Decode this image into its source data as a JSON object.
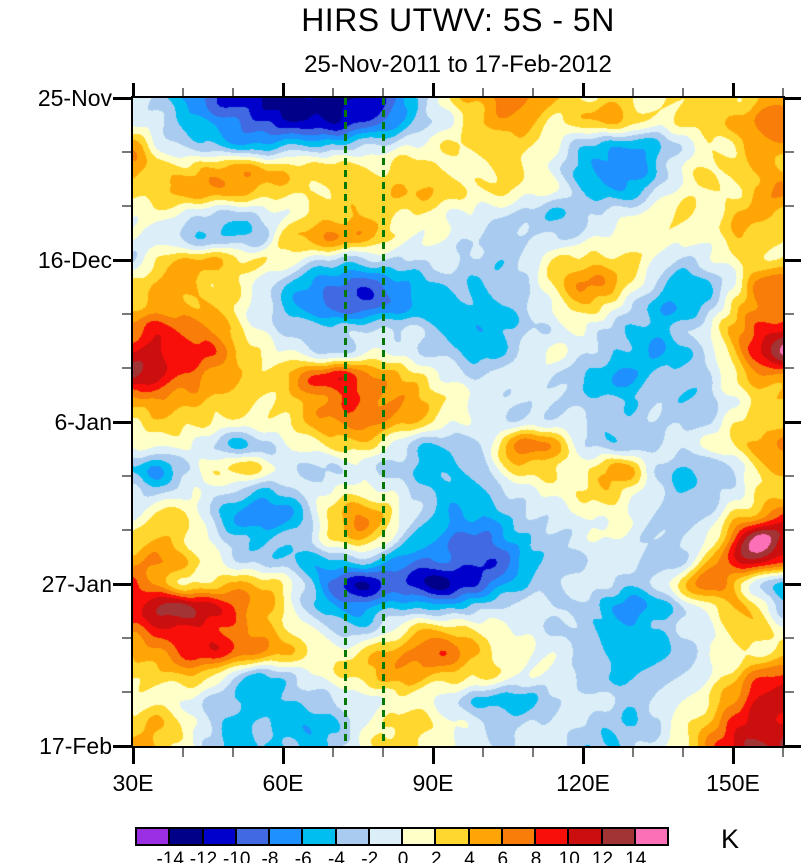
{
  "title": "HIRS UTWV: 5S - 5N",
  "subtitle": "25-Nov-2011 to 17-Feb-2012",
  "x_axis": {
    "major_ticks": [
      {
        "lon": 30,
        "label": "30E"
      },
      {
        "lon": 60,
        "label": "60E"
      },
      {
        "lon": 90,
        "label": "90E"
      },
      {
        "lon": 120,
        "label": "120E"
      },
      {
        "lon": 150,
        "label": "150E"
      }
    ],
    "minor_tick_lons": [
      40,
      50,
      70,
      80,
      100,
      110,
      130,
      140,
      160
    ],
    "range_deg_east": [
      30,
      160
    ]
  },
  "y_axis": {
    "major_ticks": [
      {
        "day": 0,
        "label": "25-Nov"
      },
      {
        "day": 21,
        "label": "16-Dec"
      },
      {
        "day": 42,
        "label": "6-Jan"
      },
      {
        "day": 63,
        "label": "27-Jan"
      },
      {
        "day": 84,
        "label": "17-Feb"
      }
    ],
    "minor_tick_days": [
      7,
      14,
      28,
      35,
      49,
      56,
      70,
      77
    ],
    "range_days": [
      0,
      84
    ]
  },
  "colorbar": {
    "unit_label": "K",
    "tick_labels": [
      "-14",
      "-12",
      "-10",
      "-8",
      "-6",
      "-4",
      "-2",
      "0",
      "2",
      "4",
      "6",
      "8",
      "10",
      "12",
      "14"
    ],
    "colors": [
      "#9B2FE3",
      "#000089",
      "#0000CD",
      "#4169E1",
      "#1E90FF",
      "#00BFF0",
      "#A9CBEF",
      "#DCEFF8",
      "#FFFFC8",
      "#FFD72E",
      "#FFA606",
      "#F87D09",
      "#F90F09",
      "#CB0E0E",
      "#A23436",
      "#FC70B8"
    ]
  },
  "reference_lines": {
    "color": "#067806",
    "longitudes_deg_east": [
      72.5,
      80
    ]
  },
  "chart_data": {
    "type": "heatmap",
    "title": "HIRS UTWV: 5S - 5N",
    "subtitle": "25-Nov-2011 to 17-Feb-2012",
    "units": "K",
    "x_deg_east": [
      30,
      35,
      40,
      45,
      50,
      55,
      60,
      65,
      70,
      75,
      80,
      85,
      90,
      95,
      100,
      105,
      110,
      115,
      120,
      125,
      130,
      135,
      140,
      145,
      150,
      155,
      160
    ],
    "time_days_since_start": [
      0,
      3,
      6,
      9,
      12,
      15,
      18,
      21,
      24,
      27,
      30,
      33,
      36,
      39,
      42,
      45,
      48,
      51,
      54,
      57,
      60,
      63,
      66,
      69,
      72,
      75,
      78,
      81,
      84
    ],
    "y_date_ticks": [
      "25-Nov",
      "16-Dec",
      "6-Jan",
      "27-Jan",
      "17-Feb"
    ],
    "x_tick_labels": [
      "30E",
      "60E",
      "90E",
      "120E",
      "150E"
    ],
    "contour_levels_K": [
      -14,
      -12,
      -10,
      -8,
      -6,
      -4,
      -2,
      0,
      2,
      4,
      6,
      8,
      10,
      12,
      14
    ],
    "level_colors": [
      "#9B2FE3",
      "#000089",
      "#0000CD",
      "#4169E1",
      "#1E90FF",
      "#00BFF0",
      "#A9CBEF",
      "#DCEFF8",
      "#FFFFC8",
      "#FFD72E",
      "#FFA606",
      "#F87D09",
      "#F90F09",
      "#CB0E0E",
      "#A23436",
      "#FC70B8"
    ],
    "reference_longitudes_deg_east": [
      72.5,
      80
    ],
    "values_K": [
      [
        -1,
        -3,
        -6,
        -9,
        -11,
        -12,
        -13,
        -12,
        -13,
        -12,
        -10,
        -6,
        -1,
        3,
        5,
        7,
        6,
        4,
        2,
        3,
        2,
        1,
        2,
        3,
        2,
        4,
        5
      ],
      [
        0,
        -2,
        -4,
        -6,
        -8,
        -10,
        -11,
        -12,
        -12,
        -10,
        -8,
        -5,
        -2,
        1,
        4,
        5,
        4,
        2,
        3,
        5,
        3,
        1,
        2,
        3,
        4,
        6,
        8
      ],
      [
        5,
        0,
        -3,
        -4,
        -5,
        -6,
        -5,
        -4,
        -4,
        -3,
        -2,
        0,
        1,
        2,
        3,
        3,
        2,
        0,
        -3,
        -5,
        -6,
        -4,
        -1,
        1,
        2,
        6,
        5
      ],
      [
        5,
        3,
        2,
        4,
        5,
        4,
        3,
        3,
        3,
        2,
        2,
        3,
        2,
        1,
        2,
        3,
        1,
        -1,
        -5,
        -7,
        -7,
        -4,
        0,
        2,
        3,
        5,
        3
      ],
      [
        2,
        3,
        5,
        6,
        5,
        4,
        3,
        2,
        2,
        3,
        3,
        4,
        4,
        3,
        2,
        2,
        1,
        0,
        -4,
        -6,
        -5,
        -2,
        1,
        2,
        2,
        4,
        7
      ],
      [
        1,
        1,
        0,
        -2,
        -3,
        -2,
        0,
        2,
        3,
        4,
        3,
        2,
        1,
        0,
        -1,
        -2,
        -3,
        -4,
        -3,
        -1,
        0,
        1,
        2,
        1,
        3,
        5,
        3
      ],
      [
        0,
        -1,
        -3,
        -4,
        -3,
        -4,
        2,
        5,
        6,
        5,
        3,
        1,
        0,
        -1,
        -2,
        -3,
        -2,
        -2,
        -1,
        0,
        1,
        2,
        1,
        0,
        4,
        3,
        2
      ],
      [
        -2,
        3,
        4,
        4,
        3,
        2,
        1,
        -1,
        -2,
        -3,
        -2,
        -2,
        -1,
        -2,
        -3,
        -3,
        -1,
        2,
        3,
        3,
        2,
        0,
        -2,
        -1,
        1,
        3,
        2
      ],
      [
        2,
        4,
        5,
        3,
        2,
        0,
        -3,
        -6,
        -8,
        -9,
        -8,
        -6,
        -4,
        -3,
        -4,
        -3,
        -1,
        3,
        6,
        5,
        2,
        -3,
        -5,
        -4,
        0,
        6,
        8
      ],
      [
        4,
        5,
        5,
        4,
        2,
        -1,
        -4,
        -7,
        -9,
        -9,
        -8,
        -6,
        -5,
        -4,
        -5,
        -4,
        -2,
        1,
        3,
        2,
        -2,
        -5,
        -6,
        -3,
        2,
        6,
        7
      ],
      [
        7,
        9,
        8,
        6,
        3,
        0,
        -2,
        -3,
        -3,
        -2,
        -2,
        -2,
        -3,
        -5,
        -6,
        -4,
        -2,
        -1,
        0,
        -2,
        -4,
        -5,
        -3,
        0,
        4,
        8,
        10
      ],
      [
        10,
        11,
        9,
        8,
        5,
        2,
        0,
        -1,
        -2,
        -1,
        0,
        -1,
        -2,
        -4,
        -5,
        -3,
        -1,
        0,
        -1,
        -3,
        -5,
        -6,
        -4,
        -2,
        3,
        10,
        14
      ],
      [
        12,
        10,
        8,
        6,
        4,
        3,
        4,
        7,
        9,
        8,
        5,
        3,
        1,
        -1,
        -2,
        -1,
        0,
        -2,
        -4,
        -6,
        -6,
        -4,
        -3,
        -2,
        2,
        5,
        6
      ],
      [
        5,
        6,
        5,
        4,
        3,
        2,
        3,
        5,
        7,
        8,
        6,
        5,
        3,
        1,
        -1,
        -2,
        -1,
        -2,
        -3,
        -4,
        -4,
        -3,
        -4,
        -3,
        0,
        3,
        4
      ],
      [
        2,
        3,
        3,
        2,
        1,
        1,
        2,
        4,
        6,
        7,
        6,
        4,
        2,
        0,
        -1,
        -2,
        -1,
        -1,
        -2,
        -3,
        -3,
        -2,
        -3,
        -2,
        1,
        3,
        3
      ],
      [
        0,
        1,
        0,
        -2,
        -4,
        -3,
        -1,
        1,
        3,
        3,
        1,
        -2,
        -4,
        -4,
        -2,
        5,
        7,
        4,
        -1,
        -3,
        -4,
        -2,
        -1,
        0,
        2,
        5,
        6
      ],
      [
        -4,
        -6,
        -3,
        1,
        3,
        2,
        -1,
        -2,
        -2,
        -1,
        -2,
        -3,
        -5,
        -4,
        -2,
        2,
        3,
        2,
        1,
        4,
        4,
        -2,
        -4,
        -4,
        -2,
        3,
        4
      ],
      [
        -2,
        -3,
        -1,
        0,
        -2,
        -4,
        -3,
        -1,
        0,
        1,
        0,
        -2,
        -4,
        -5,
        -4,
        -2,
        0,
        1,
        2,
        3,
        1,
        -2,
        -4,
        -3,
        -1,
        2,
        3
      ],
      [
        0,
        2,
        3,
        -2,
        -6,
        -8,
        -7,
        -3,
        3,
        6,
        4,
        -1,
        -4,
        -6,
        -6,
        -4,
        -2,
        -1,
        0,
        1,
        0,
        -2,
        -3,
        -2,
        2,
        4,
        8
      ],
      [
        3,
        4,
        2,
        0,
        -3,
        -5,
        -4,
        -2,
        2,
        4,
        2,
        -3,
        -6,
        -8,
        -8,
        -6,
        -4,
        -2,
        -1,
        0,
        -1,
        -2,
        -2,
        0,
        7,
        15,
        11
      ],
      [
        5,
        7,
        4,
        1,
        -1,
        -3,
        -4,
        -5,
        -4,
        -3,
        -5,
        -7,
        -8,
        -9,
        -10,
        -8,
        -5,
        -3,
        -2,
        -1,
        -2,
        -3,
        -2,
        3,
        9,
        12,
        8
      ],
      [
        8,
        5,
        2,
        3,
        4,
        4,
        2,
        -3,
        -9,
        -12,
        -10,
        -10,
        -13,
        -11,
        -9,
        -6,
        -3,
        -2,
        -1,
        -2,
        -3,
        -2,
        3,
        8,
        5,
        -2,
        -4
      ],
      [
        10,
        12,
        13,
        11,
        8,
        5,
        2,
        -3,
        -6,
        -7,
        -5,
        -4,
        -5,
        -4,
        -3,
        -2,
        -1,
        -2,
        -3,
        -5,
        -7,
        -5,
        -2,
        1,
        4,
        2,
        -3
      ],
      [
        7,
        9,
        10,
        9,
        7,
        5,
        3,
        0,
        -2,
        -3,
        -1,
        2,
        4,
        3,
        1,
        0,
        -1,
        -2,
        -3,
        -4,
        -5,
        -4,
        -2,
        0,
        2,
        3,
        1
      ],
      [
        4,
        6,
        8,
        9,
        8,
        6,
        4,
        2,
        1,
        2,
        4,
        6,
        8,
        6,
        3,
        1,
        0,
        -1,
        -2,
        -4,
        -6,
        -5,
        -3,
        -1,
        1,
        2,
        3
      ],
      [
        2,
        3,
        4,
        3,
        -2,
        -4,
        -3,
        -1,
        1,
        3,
        4,
        5,
        4,
        3,
        2,
        1,
        0,
        -1,
        -3,
        -4,
        -4,
        -3,
        -2,
        0,
        3,
        7,
        9
      ],
      [
        1,
        1,
        0,
        -2,
        -4,
        -5,
        -4,
        -3,
        -2,
        -1,
        0,
        1,
        0,
        -2,
        -4,
        -5,
        -4,
        -2,
        -1,
        -2,
        -3,
        -2,
        0,
        2,
        6,
        10,
        12
      ],
      [
        3,
        4,
        2,
        -2,
        -5,
        -4,
        -5,
        -6,
        -4,
        -1,
        2,
        3,
        2,
        0,
        -2,
        -3,
        -2,
        -1,
        -2,
        -3,
        -4,
        -2,
        1,
        4,
        8,
        11,
        10
      ],
      [
        5,
        4,
        1,
        -3,
        -5,
        -4,
        -4,
        -5,
        -3,
        0,
        2,
        3,
        1,
        -1,
        -2,
        -2,
        -1,
        -2,
        -3,
        -4,
        -3,
        -1,
        2,
        6,
        10,
        13,
        12
      ]
    ]
  }
}
